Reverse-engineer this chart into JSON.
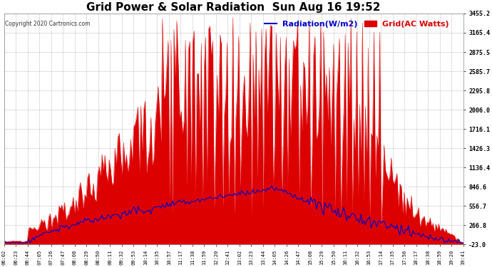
{
  "title": "Grid Power & Solar Radiation  Sun Aug 16 19:52",
  "copyright": "Copyright 2020 Cartronics.com",
  "legend_radiation": "Radiation(W/m2)",
  "legend_grid": "Grid(AC Watts)",
  "y_ticks": [
    3455.2,
    3165.4,
    2875.5,
    2585.7,
    2295.8,
    2006.0,
    1716.1,
    1426.3,
    1136.4,
    846.6,
    556.7,
    266.8,
    -23.0
  ],
  "y_min": -23.0,
  "y_max": 3455.2,
  "background_color": "#ffffff",
  "plot_bg_color": "#ffffff",
  "grid_color": "#aaaaaa",
  "fill_color": "#dd0000",
  "radiation_color": "#0000cc",
  "grid_line_color": "#dd0000",
  "title_fontsize": 11,
  "tick_fontsize": 6,
  "legend_fontsize": 8
}
